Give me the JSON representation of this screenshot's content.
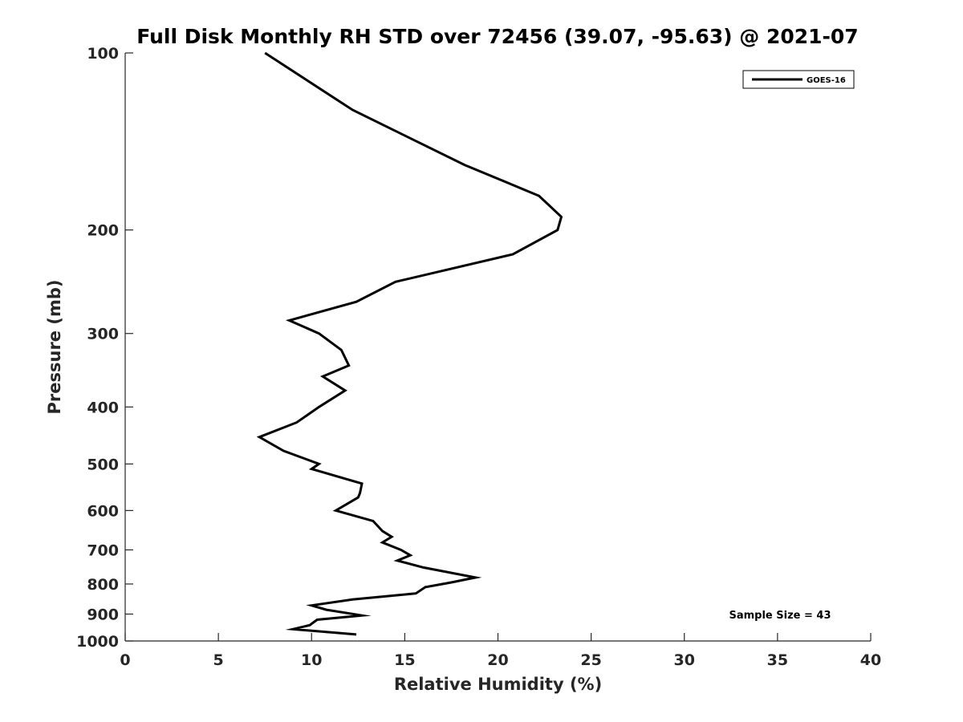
{
  "chart_data": {
    "type": "line",
    "title": "Full Disk Monthly RH STD over 72456 (39.07, -95.63) @ 2021-07",
    "xlabel": "Relative Humidity (%)",
    "ylabel": "Pressure (mb)",
    "xlim": [
      0,
      40
    ],
    "ylim": [
      100,
      1000
    ],
    "yscale": "log",
    "y_reversed": true,
    "xticks": [
      0,
      5,
      10,
      15,
      20,
      25,
      30,
      35,
      40
    ],
    "yticks": [
      100,
      200,
      300,
      400,
      500,
      600,
      700,
      800,
      900,
      1000
    ],
    "grid": false,
    "legend": {
      "placement": "top-right",
      "entries": [
        "GOES-16"
      ]
    },
    "annotation": "Sample Size = 43",
    "line_color": "#000000",
    "series": [
      {
        "name": "GOES-16",
        "points": [
          [
            7.5,
            100
          ],
          [
            12.2,
            125
          ],
          [
            18.2,
            155
          ],
          [
            22.2,
            175
          ],
          [
            23.4,
            190
          ],
          [
            23.2,
            200
          ],
          [
            20.8,
            220
          ],
          [
            14.5,
            245
          ],
          [
            12.4,
            265
          ],
          [
            8.8,
            285
          ],
          [
            10.4,
            300
          ],
          [
            11.6,
            320
          ],
          [
            12.0,
            340
          ],
          [
            10.6,
            355
          ],
          [
            11.8,
            375
          ],
          [
            10.4,
            400
          ],
          [
            9.2,
            425
          ],
          [
            7.2,
            450
          ],
          [
            8.5,
            475
          ],
          [
            10.4,
            500
          ],
          [
            10.0,
            510
          ],
          [
            12.7,
            540
          ],
          [
            12.6,
            560
          ],
          [
            12.5,
            570
          ],
          [
            11.3,
            600
          ],
          [
            13.3,
            625
          ],
          [
            13.8,
            650
          ],
          [
            14.3,
            665
          ],
          [
            13.8,
            680
          ],
          [
            14.8,
            700
          ],
          [
            15.3,
            715
          ],
          [
            14.6,
            730
          ],
          [
            16.0,
            750
          ],
          [
            18.8,
            780
          ],
          [
            17.5,
            795
          ],
          [
            16.1,
            810
          ],
          [
            15.6,
            830
          ],
          [
            12.2,
            850
          ],
          [
            10.0,
            870
          ],
          [
            10.8,
            885
          ],
          [
            12.7,
            905
          ],
          [
            10.3,
            920
          ],
          [
            9.9,
            940
          ],
          [
            9.0,
            955
          ],
          [
            12.4,
            975
          ]
        ]
      }
    ]
  }
}
